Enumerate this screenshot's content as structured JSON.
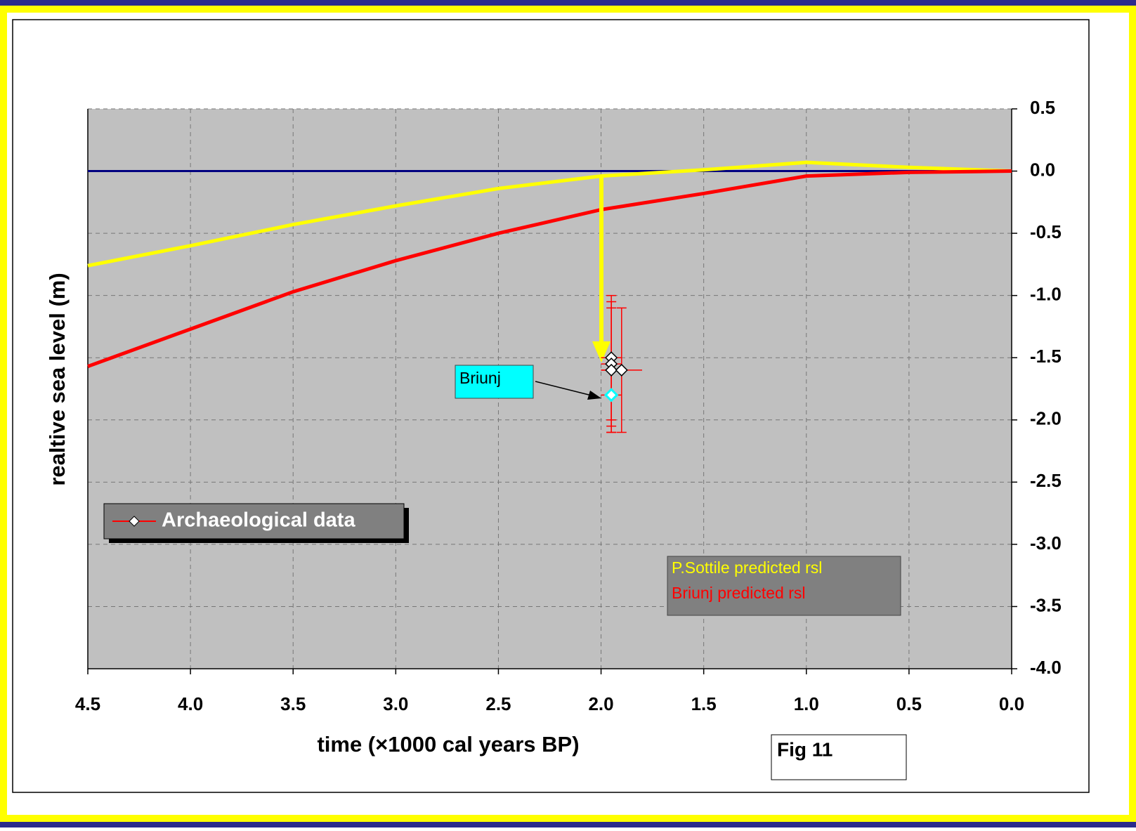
{
  "chart_data": {
    "type": "line",
    "x_label": "time (×1000 cal years BP)",
    "y_label": "realtive sea level (m)",
    "xlim": [
      4.5,
      0
    ],
    "ylim": [
      -4.0,
      0.5
    ],
    "xticks": [
      4.5,
      {
        "value": 4,
        "label": "4.0"
      },
      3.5,
      {
        "value": 3,
        "label": "3.0"
      },
      2.5,
      {
        "value": 2,
        "label": "2.0"
      },
      1.5,
      {
        "value": 1,
        "label": "1.0"
      },
      0.5,
      {
        "value": 0,
        "label": "0.0"
      }
    ],
    "yticks": [
      0.5,
      {
        "value": 0,
        "label": "0.0"
      },
      -0.5,
      {
        "value": -1,
        "label": "-1.0"
      },
      -1.5,
      {
        "value": -2,
        "label": "-2.0"
      },
      -2.5,
      {
        "value": -3,
        "label": "-3.0"
      },
      -3.5,
      {
        "value": -4,
        "label": "-4.0"
      }
    ],
    "grid": true,
    "series": [
      {
        "color": "#000080",
        "x": [
          4.5,
          0
        ],
        "values": [
          0,
          0
        ]
      },
      {
        "name": "P.Sottile predicted rsl",
        "color": "#ffff00",
        "x": [
          4.5,
          4.0,
          3.5,
          3.0,
          2.5,
          2.0,
          1.5,
          1.0,
          0.5,
          0.0
        ],
        "values": [
          -0.76,
          -0.6,
          -0.43,
          -0.28,
          -0.14,
          -0.04,
          0.01,
          0.07,
          0.03,
          0.0
        ]
      },
      {
        "name": "Briunj predicted rsl",
        "color": "#ff0000",
        "x": [
          4.5,
          4.0,
          3.5,
          3.0,
          2.5,
          2.0,
          1.5,
          1.0,
          0.5,
          0.0
        ],
        "values": [
          -1.57,
          -1.27,
          -0.97,
          -0.72,
          -0.5,
          -0.31,
          -0.18,
          -0.04,
          -0.01,
          0.0
        ]
      }
    ],
    "points": {
      "name": "Archaeological data",
      "color": "#ffffff",
      "error_color": "#ff0000",
      "x": [
        1.95,
        1.95,
        1.95,
        1.9,
        1.95
      ],
      "values": [
        -1.5,
        -1.55,
        -1.6,
        -1.6,
        -1.8
      ],
      "yerr": [
        0.5,
        0.5,
        0.5,
        0.5,
        0.3
      ],
      "xerr": [
        0.05,
        0.05,
        0.05,
        0.1,
        0.05
      ],
      "highlight": {
        "index": 4,
        "color": "#00ffff",
        "label": "Briunj"
      }
    },
    "figure_label": "Fig 11"
  }
}
